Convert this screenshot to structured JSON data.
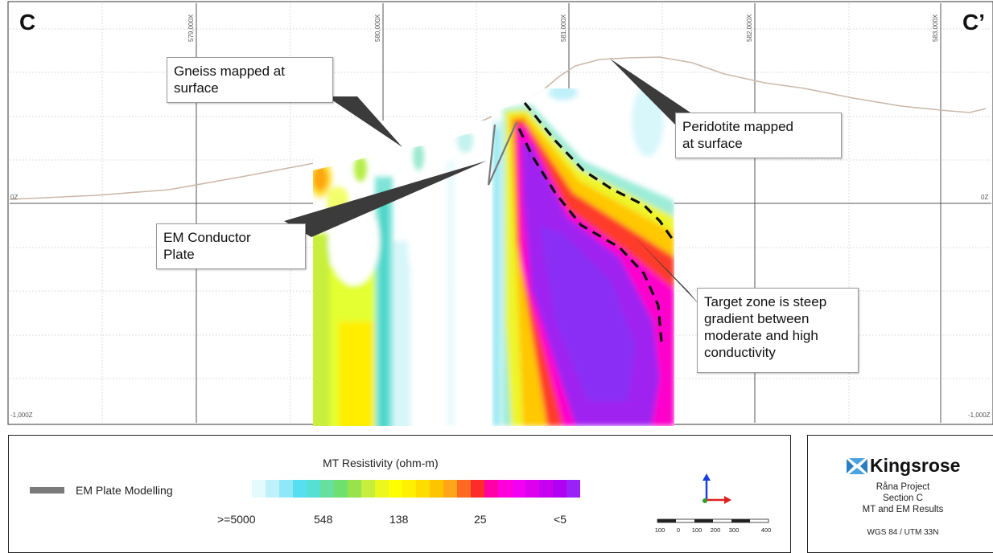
{
  "section": {
    "left_label": "C",
    "right_label": "C’",
    "eastings": [
      "579,000X",
      "580,000X",
      "581,000X",
      "582,000X",
      "583,000X"
    ],
    "elevation_top": "0Z",
    "elevation_bottom": "-1,000Z"
  },
  "annotations": {
    "gneiss": "Gneiss mapped at\nsurface",
    "peridotite": "Peridotite mapped\nat surface",
    "em_conductor": "EM Conductor\nPlate",
    "target_zone": "Target zone is steep\ngradient between\nmoderate and high\nconductivity"
  },
  "legend": {
    "em_plate_label": "EM Plate Modelling",
    "em_plate_color": "#7a7a7a",
    "resistivity_title": "MT Resistivity (ohm-m)",
    "resistivity_labels": [
      ">=5000",
      "548",
      "138",
      "25",
      "<5"
    ],
    "resistivity_colors": [
      "#ffffff",
      "#e4fbfd",
      "#bff1fb",
      "#8fe8f8",
      "#55dff1",
      "#56e0d4",
      "#66df9f",
      "#6fe06d",
      "#98e24c",
      "#c7ee3a",
      "#ecf71f",
      "#ffff00",
      "#ffef00",
      "#ffdc00",
      "#ffc400",
      "#ffa51a",
      "#ff6a20",
      "#ff2a2a",
      "#ff00a8",
      "#ff00dd",
      "#f300f3",
      "#dd00ee",
      "#c800f0",
      "#b200f3",
      "#9a22f7"
    ],
    "north_arrow_color": "#1a3fe0",
    "east_arrow_color": "#e02020",
    "scale_ticks": [
      "100",
      "0",
      "100",
      "200",
      "300",
      "400"
    ]
  },
  "title_block": {
    "company": "Kingsrose",
    "logo_color": "#2a7fc4",
    "project": "Råna Project",
    "section": "Section C",
    "subtitle": "MT and EM Results",
    "crs": "WGS 84 / UTM 33N"
  }
}
